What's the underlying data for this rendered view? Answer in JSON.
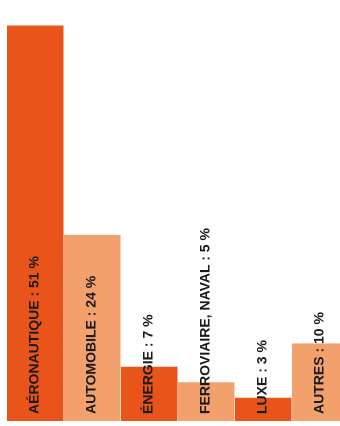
{
  "chart_data": {
    "type": "bar",
    "title": "",
    "xlabel": "",
    "ylabel": "",
    "categories": [
      "AÉRONAUTIQUE : 51 %",
      "AUTOMOBILE : 24 %",
      "ÉNERGIE : 7 %",
      "FERROVIAIRE, NAVAL : 5 %",
      "LUXE : 3 %",
      "AUTRES : 10 %"
    ],
    "values": [
      51,
      24,
      7,
      5,
      3,
      10
    ],
    "unit": "%",
    "ylim": [
      0,
      53
    ],
    "grid": false,
    "legend": "none",
    "colors": [
      "#e8541a",
      "#f2a06c",
      "#e8541a",
      "#f2a06c",
      "#e8541a",
      "#f2a06c"
    ]
  }
}
